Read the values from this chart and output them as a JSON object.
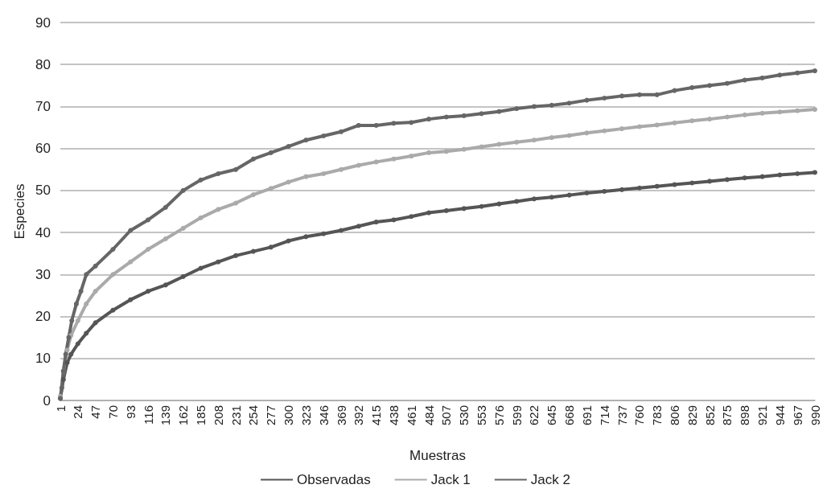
{
  "chart_data": {
    "type": "line",
    "xlabel": "Muestras",
    "ylabel": "Especies",
    "xlim": [
      1,
      990
    ],
    "xticks": [
      1,
      24,
      47,
      70,
      93,
      116,
      139,
      162,
      185,
      208,
      231,
      254,
      277,
      300,
      323,
      346,
      369,
      392,
      415,
      438,
      461,
      484,
      507,
      530,
      553,
      576,
      599,
      622,
      645,
      668,
      691,
      714,
      737,
      760,
      783,
      806,
      829,
      852,
      875,
      898,
      921,
      944,
      967,
      990
    ],
    "ylim": [
      0,
      90
    ],
    "yticks": [
      0,
      10,
      20,
      30,
      40,
      50,
      60,
      70,
      80,
      90
    ],
    "grid": "y",
    "legend": "bottom",
    "marker": "circle",
    "line_style": "solid",
    "series": [
      {
        "name": "Observadas",
        "color": "#555555",
        "x": [
          1,
          5,
          10,
          15,
          24,
          35,
          47,
          70,
          93,
          116,
          139,
          162,
          185,
          208,
          231,
          254,
          277,
          300,
          323,
          346,
          369,
          392,
          415,
          438,
          461,
          484,
          507,
          530,
          553,
          576,
          599,
          622,
          645,
          668,
          691,
          714,
          737,
          760,
          783,
          806,
          829,
          852,
          875,
          898,
          921,
          944,
          967,
          990
        ],
        "values": [
          0.5,
          5,
          9,
          11,
          13.5,
          16,
          18.5,
          21.5,
          24,
          26,
          27.5,
          29.5,
          31.5,
          33,
          34.5,
          35.5,
          36.5,
          38,
          39,
          39.7,
          40.5,
          41.5,
          42.5,
          43,
          43.8,
          44.7,
          45.2,
          45.7,
          46.2,
          46.8,
          47.4,
          48,
          48.4,
          48.9,
          49.4,
          49.8,
          50.2,
          50.6,
          51,
          51.4,
          51.8,
          52.2,
          52.6,
          53,
          53.3,
          53.7,
          54,
          54.3
        ]
      },
      {
        "name": "Jack 1",
        "color": "#aaaaaa",
        "x": [
          1,
          5,
          10,
          15,
          24,
          35,
          47,
          70,
          93,
          116,
          139,
          162,
          185,
          208,
          231,
          254,
          277,
          300,
          323,
          346,
          369,
          392,
          415,
          438,
          461,
          484,
          507,
          530,
          553,
          576,
          599,
          622,
          645,
          668,
          691,
          714,
          737,
          760,
          783,
          806,
          829,
          852,
          875,
          898,
          921,
          944,
          967,
          990
        ],
        "values": [
          1,
          7,
          12,
          15.5,
          19,
          23,
          26,
          30,
          33,
          36,
          38.5,
          41,
          43.5,
          45.5,
          47,
          49,
          50.5,
          52,
          53.3,
          54,
          55,
          56,
          56.8,
          57.5,
          58.2,
          59,
          59.3,
          59.8,
          60.4,
          61,
          61.5,
          62,
          62.6,
          63.1,
          63.7,
          64.2,
          64.7,
          65.2,
          65.6,
          66.1,
          66.6,
          67,
          67.5,
          68,
          68.4,
          68.7,
          69,
          69.3
        ]
      },
      {
        "name": "Jack 2",
        "color": "#666666",
        "x": [
          1,
          3,
          5,
          8,
          12,
          16,
          22,
          28,
          35,
          47,
          70,
          93,
          116,
          139,
          162,
          185,
          208,
          231,
          254,
          277,
          300,
          323,
          346,
          369,
          392,
          415,
          438,
          461,
          484,
          507,
          530,
          553,
          576,
          599,
          622,
          645,
          668,
          691,
          714,
          737,
          760,
          783,
          806,
          829,
          852,
          875,
          898,
          921,
          944,
          967,
          990
        ],
        "values": [
          0.5,
          3,
          7,
          11,
          15,
          19,
          23,
          26,
          30,
          32,
          36,
          40.5,
          43,
          46,
          50,
          52.5,
          54,
          55,
          57.5,
          59,
          60.5,
          62,
          63,
          64,
          65.5,
          65.5,
          66,
          66.2,
          67,
          67.5,
          67.8,
          68.3,
          68.8,
          69.5,
          70,
          70.3,
          70.8,
          71.5,
          72,
          72.5,
          72.8,
          72.8,
          73.8,
          74.5,
          75,
          75.5,
          76.3,
          76.8,
          77.5,
          78,
          78.5
        ]
      }
    ]
  }
}
